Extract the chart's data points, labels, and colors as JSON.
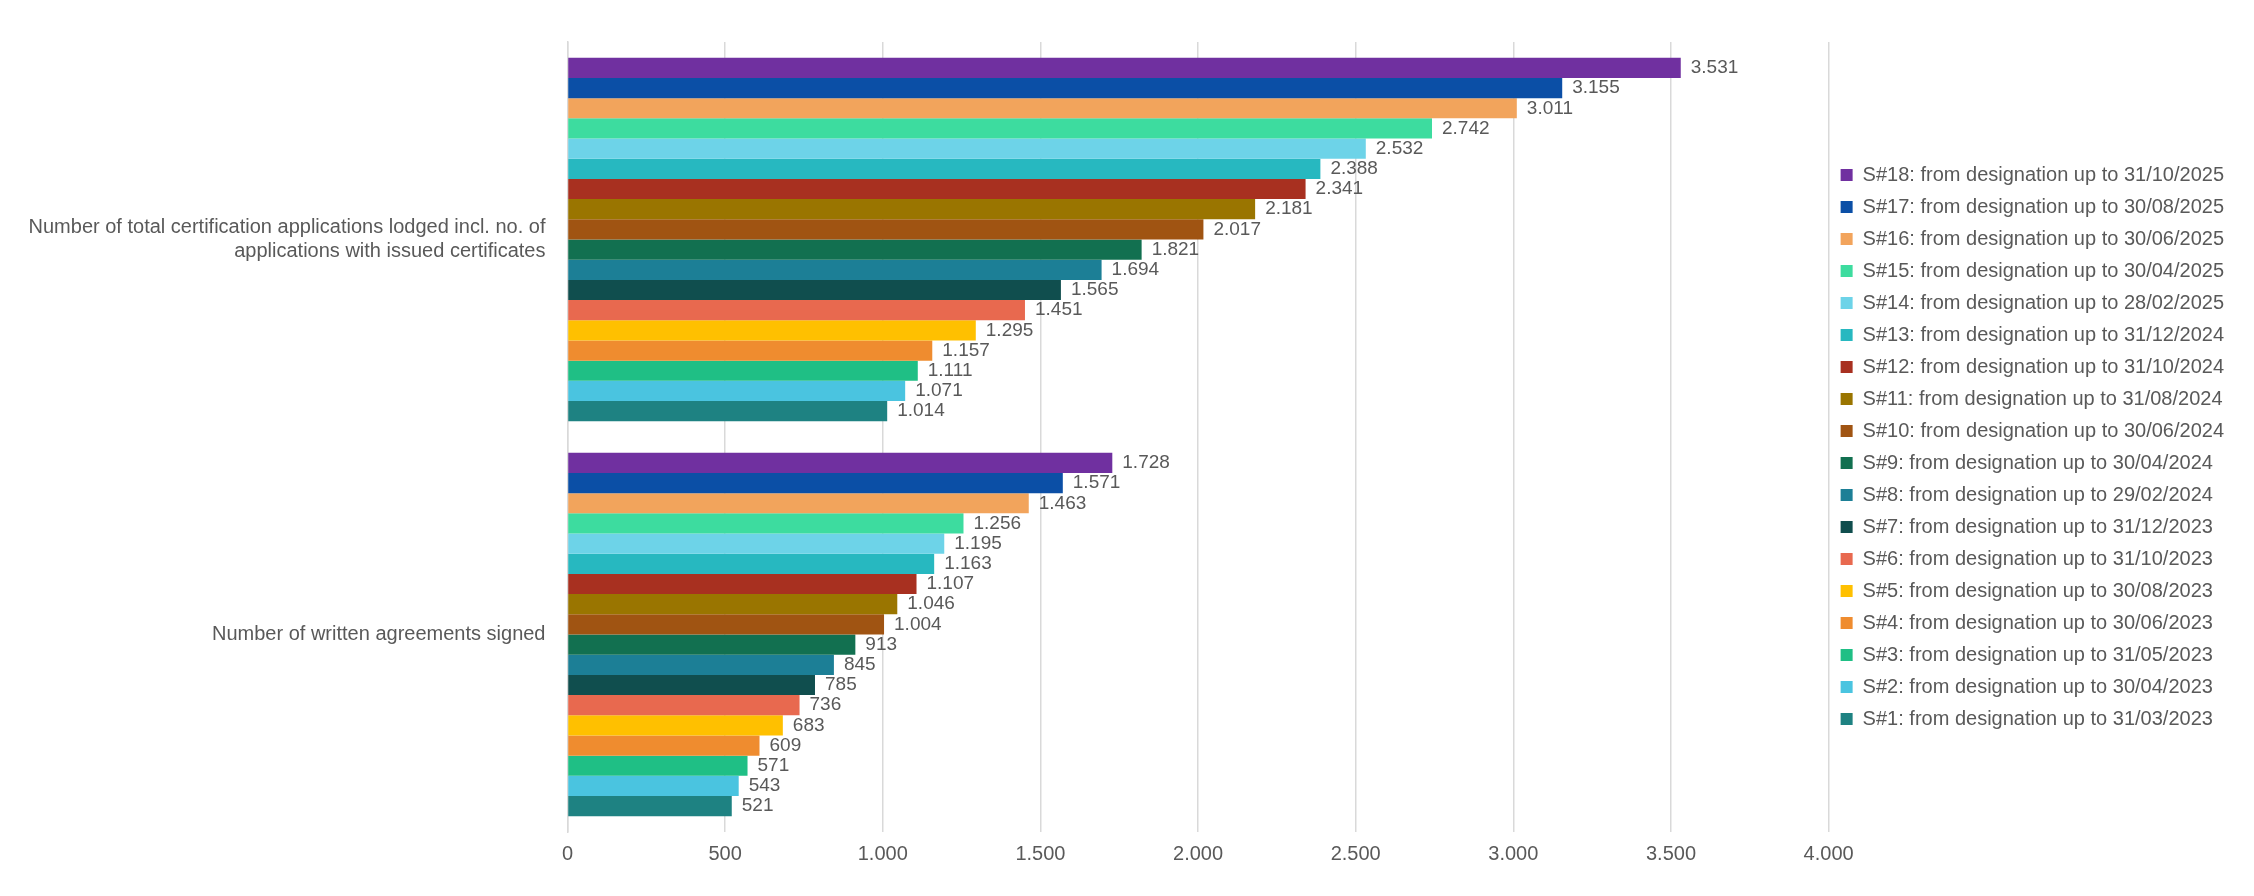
{
  "chart_data": {
    "type": "bar",
    "orientation": "horizontal",
    "categories": [
      "Number of total certification applications lodged incl. no. of applications with issued certificates",
      "Number of written agreements signed"
    ],
    "series": [
      {
        "name": "S#18: from designation up to 31/10/2025",
        "color": "#7030a0",
        "values": [
          3531,
          1728
        ],
        "value_labels": [
          "3.531",
          "1.728"
        ]
      },
      {
        "name": "S#17: from designation up to 30/08/2025",
        "color": "#0b4fa6",
        "values": [
          3155,
          1571
        ],
        "value_labels": [
          "3.155",
          "1.571"
        ]
      },
      {
        "name": "S#16: from designation up to 30/06/2025",
        "color": "#f2a45c",
        "values": [
          3011,
          1463
        ],
        "value_labels": [
          "3.011",
          "1.463"
        ]
      },
      {
        "name": "S#15: from designation up to 30/04/2025",
        "color": "#3ddc9f",
        "values": [
          2742,
          1256
        ],
        "value_labels": [
          "2.742",
          "1.256"
        ]
      },
      {
        "name": "S#14: from designation up to 28/02/2025",
        "color": "#6dd3e8",
        "values": [
          2532,
          1195
        ],
        "value_labels": [
          "2.532",
          "1.195"
        ]
      },
      {
        "name": "S#13: from designation up to 31/12/2024",
        "color": "#27b8c0",
        "values": [
          2388,
          1163
        ],
        "value_labels": [
          "2.388",
          "1.163"
        ]
      },
      {
        "name": "S#12: from designation up to 31/10/2024",
        "color": "#a83020",
        "values": [
          2341,
          1107
        ],
        "value_labels": [
          "2.341",
          "1.107"
        ]
      },
      {
        "name": "S#11: from designation up to 31/08/2024",
        "color": "#9a7500",
        "values": [
          2181,
          1046
        ],
        "value_labels": [
          "2.181",
          "1.046"
        ]
      },
      {
        "name": "S#10: from designation up to 30/06/2024",
        "color": "#a05412",
        "values": [
          2017,
          1004
        ],
        "value_labels": [
          "2.017",
          "1.004"
        ]
      },
      {
        "name": "S#9: from designation up to 30/04/2024",
        "color": "#127050",
        "values": [
          1821,
          913
        ],
        "value_labels": [
          "1.821",
          "913"
        ]
      },
      {
        "name": "S#8: from designation up to 29/02/2024",
        "color": "#1c7f96",
        "values": [
          1694,
          845
        ],
        "value_labels": [
          "1.694",
          "845"
        ]
      },
      {
        "name": "S#7: from designation up to 31/12/2023",
        "color": "#104e4e",
        "values": [
          1565,
          785
        ],
        "value_labels": [
          "1.565",
          "785"
        ]
      },
      {
        "name": "S#6: from designation up to 31/10/2023",
        "color": "#e8694f",
        "values": [
          1451,
          736
        ],
        "value_labels": [
          "1.451",
          "736"
        ]
      },
      {
        "name": "S#5: from designation up to 30/08/2023",
        "color": "#ffc000",
        "values": [
          1295,
          683
        ],
        "value_labels": [
          "1.295",
          "683"
        ]
      },
      {
        "name": "S#4: from designation up to 30/06/2023",
        "color": "#ef8c2f",
        "values": [
          1157,
          609
        ],
        "value_labels": [
          "1.157",
          "609"
        ]
      },
      {
        "name": "S#3: from designation up to 31/05/2023",
        "color": "#1fbf85",
        "values": [
          1111,
          571
        ],
        "value_labels": [
          "1.111",
          "571"
        ]
      },
      {
        "name": "S#2: from designation up to 30/04/2023",
        "color": "#4ac4e0",
        "values": [
          1071,
          543
        ],
        "value_labels": [
          "1.071",
          "543"
        ]
      },
      {
        "name": "S#1: from designation up to 31/03/2023",
        "color": "#1e8282",
        "values": [
          1014,
          521
        ],
        "value_labels": [
          "1.014",
          "521"
        ]
      }
    ],
    "xlim": [
      0,
      4000
    ],
    "xticks": [
      0,
      500,
      {
        "value": 1000,
        "label": "1.000"
      },
      {
        "value": 1500,
        "label": "1.500"
      },
      {
        "value": 2000,
        "label": "2.000"
      },
      {
        "value": 2500,
        "label": "2.500"
      },
      {
        "value": 3000,
        "label": "3.000"
      },
      {
        "value": 3500,
        "label": "3.500"
      },
      {
        "value": 4000,
        "label": "4.000"
      }
    ],
    "grid": "x",
    "legend": "right"
  }
}
